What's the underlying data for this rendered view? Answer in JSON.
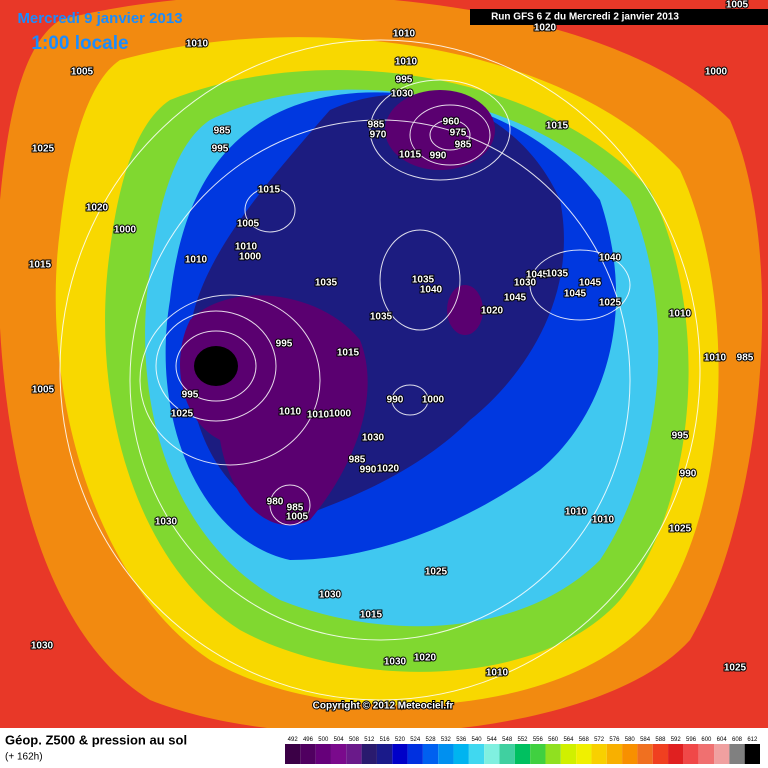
{
  "header": {
    "date": "Mercredi 9 janvier 2013",
    "time": "1:00 locale",
    "run": "Run GFS 6 Z du Mercredi 2 janvier 2013"
  },
  "copyright": "Copyright © 2012 Meteociel.fr",
  "legend": {
    "title": "Géop. Z500 & pression au sol",
    "subtitle": "(+ 162h)",
    "levels": [
      492,
      496,
      500,
      504,
      508,
      512,
      516,
      520,
      524,
      528,
      532,
      536,
      540,
      544,
      548,
      552,
      556,
      560,
      564,
      568,
      572,
      576,
      580,
      584,
      588,
      592,
      596,
      600,
      604,
      608,
      612
    ],
    "colors": [
      "#3b0046",
      "#500060",
      "#66007a",
      "#7a0a8c",
      "#6a1a8a",
      "#2a1a6e",
      "#1a1a8a",
      "#0000c8",
      "#0030e0",
      "#0060f0",
      "#0090f0",
      "#00b4f0",
      "#40d8f0",
      "#80f0e0",
      "#40d0a0",
      "#00c060",
      "#40d040",
      "#90e020",
      "#d0f000",
      "#f0f000",
      "#f8d000",
      "#f8b000",
      "#f89000",
      "#f07020",
      "#f04020",
      "#e02020",
      "#f04848",
      "#f07070",
      "#f0a0a0",
      "#808080",
      "#000000"
    ]
  },
  "isobar_labels": [
    1005,
    1020,
    1010,
    1010,
    1005,
    1010,
    1000,
    995,
    1030,
    985,
    985,
    970,
    960,
    975,
    985,
    990,
    1015,
    1015,
    1025,
    995,
    1015,
    1020,
    1000,
    1005,
    1010,
    1000,
    1010,
    1015,
    1035,
    1035,
    1040,
    1045,
    1035,
    1030,
    1045,
    1040,
    1045,
    1045,
    1025,
    1020,
    1035,
    1010,
    995,
    1015,
    1010,
    985,
    990,
    1000,
    995,
    1025,
    1005,
    1010,
    1010,
    1000,
    1030,
    995,
    985,
    990,
    1020,
    990,
    980,
    985,
    1005,
    1010,
    1010,
    1025,
    1030,
    1025,
    1030,
    1015,
    1030,
    1030,
    1020,
    1010,
    1025
  ]
}
